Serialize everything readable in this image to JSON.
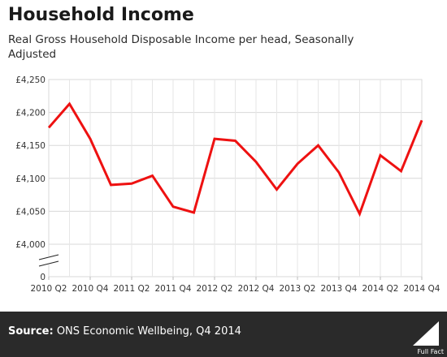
{
  "header": {
    "title": "Household Income",
    "subtitle": "Real Gross Household Disposable Income per head, Seasonally Adjusted"
  },
  "chart_data": {
    "type": "line",
    "title": "Household Income",
    "subtitle": "Real Gross Household Disposable Income per head, Seasonally Adjusted",
    "xlabel": "",
    "ylabel": "",
    "x": [
      "2010 Q2",
      "2010 Q3",
      "2010 Q4",
      "2011 Q1",
      "2011 Q2",
      "2011 Q3",
      "2011 Q4",
      "2012 Q1",
      "2012 Q2",
      "2012 Q3",
      "2012 Q4",
      "2013 Q1",
      "2013 Q2",
      "2013 Q3",
      "2013 Q4",
      "2014 Q1",
      "2014 Q2",
      "2014 Q3",
      "2014 Q4"
    ],
    "x_tick_labels": [
      "2010 Q2",
      "2010 Q4",
      "2011 Q2",
      "2011 Q4",
      "2012 Q2",
      "2012 Q4",
      "2013 Q2",
      "2013 Q4",
      "2014 Q2",
      "2014 Q4"
    ],
    "series": [
      {
        "values": [
          4177,
          4213,
          4160,
          4090,
          4092,
          4104,
          4057,
          4048,
          4160,
          4157,
          4125,
          4083,
          4122,
          4150,
          4109,
          4046,
          4135,
          4111,
          4188
        ]
      }
    ],
    "y_tick_labels": [
      "£4,250",
      "£4,200",
      "£4,150",
      "£4,100",
      "£4,050",
      "£4,000",
      "0"
    ],
    "y_ticks": [
      4250,
      4200,
      4150,
      4100,
      4050,
      4000
    ],
    "ylim": [
      4000,
      4250
    ],
    "y_axis_break": true,
    "grid": true,
    "line_color": "#ee1111"
  },
  "footer": {
    "source_label": "Source:",
    "source_text": "ONS Economic Wellbeing, Q4 2014",
    "logo_text": "Full Fact"
  }
}
